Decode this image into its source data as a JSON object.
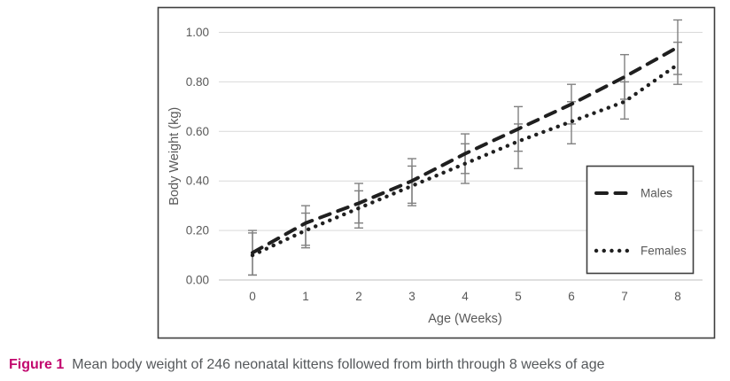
{
  "figure": {
    "caption_label": "Figure 1",
    "caption_text": "Mean body weight of 246 neonatal kittens followed from birth through 8 weeks of age"
  },
  "chart_data": {
    "type": "line",
    "title": "",
    "xlabel": "Age (Weeks)",
    "ylabel": "Body Weight (kg)",
    "x": [
      0,
      1,
      2,
      3,
      4,
      5,
      6,
      7,
      8
    ],
    "x_tick_labels": [
      "0",
      "1",
      "2",
      "3",
      "4",
      "5",
      "6",
      "7",
      "8"
    ],
    "y_ticks": [
      0,
      0.2,
      0.4,
      0.6,
      0.8,
      1.0
    ],
    "y_tick_labels": [
      "0.00",
      "0.20",
      "0.40",
      "0.60",
      "0.80",
      "1.00"
    ],
    "ylim": [
      0,
      1.08
    ],
    "grid": "horizontal",
    "legend_position": "right-inside",
    "error_bars": true,
    "series": [
      {
        "name": "Males",
        "line_style": "dashed",
        "color": "#1f1f1f",
        "values": [
          0.11,
          0.23,
          0.31,
          0.4,
          0.51,
          0.61,
          0.71,
          0.82,
          0.94
        ],
        "error_low": [
          0.02,
          0.14,
          0.23,
          0.31,
          0.43,
          0.52,
          0.63,
          0.73,
          0.83
        ],
        "error_high": [
          0.2,
          0.3,
          0.39,
          0.49,
          0.59,
          0.7,
          0.79,
          0.91,
          1.05
        ]
      },
      {
        "name": "Females",
        "line_style": "dotted",
        "color": "#1f1f1f",
        "values": [
          0.1,
          0.2,
          0.29,
          0.38,
          0.47,
          0.56,
          0.64,
          0.72,
          0.87
        ],
        "error_low": [
          0.02,
          0.13,
          0.21,
          0.3,
          0.39,
          0.45,
          0.55,
          0.65,
          0.79
        ],
        "error_high": [
          0.19,
          0.27,
          0.36,
          0.46,
          0.55,
          0.63,
          0.72,
          0.8,
          0.96
        ]
      }
    ]
  },
  "colors": {
    "frame": "#3f3f3f",
    "gridline": "#d9d9d9",
    "baseline": "#bfbfbf",
    "tick_text": "#595959",
    "axis_label": "#595959",
    "error_bar": "#808080",
    "legend_border": "#3f3f3f",
    "legend_text": "#595959",
    "caption_label": "#c2086e",
    "caption_text": "#55585b"
  }
}
